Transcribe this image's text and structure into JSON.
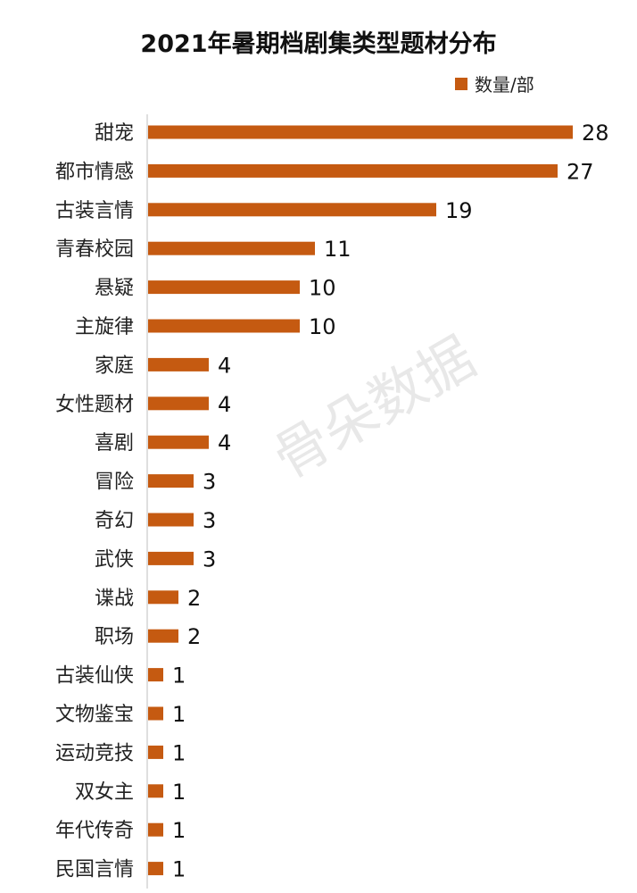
{
  "watermark": "骨朵数据",
  "chart_data": {
    "type": "bar",
    "orientation": "horizontal",
    "title": "2021年暑期档剧集类型题材分布",
    "legend": {
      "position": "top-right"
    },
    "series": [
      {
        "name": "数量/部",
        "color": "#c55a11"
      }
    ],
    "categories": [
      "甜宠",
      "都市情感",
      "古装言情",
      "青春校园",
      "悬疑",
      "主旋律",
      "家庭",
      "女性题材",
      "喜剧",
      "冒险",
      "奇幻",
      "武侠",
      "谍战",
      "职场",
      "古装仙侠",
      "文物鉴宝",
      "运动竞技",
      "双女主",
      "年代传奇",
      "民国言情"
    ],
    "values": [
      28,
      27,
      19,
      11,
      10,
      10,
      4,
      4,
      4,
      3,
      3,
      3,
      2,
      2,
      1,
      1,
      1,
      1,
      1,
      1
    ],
    "xlim": [
      0,
      28
    ],
    "grid": false,
    "data_labels": true
  }
}
